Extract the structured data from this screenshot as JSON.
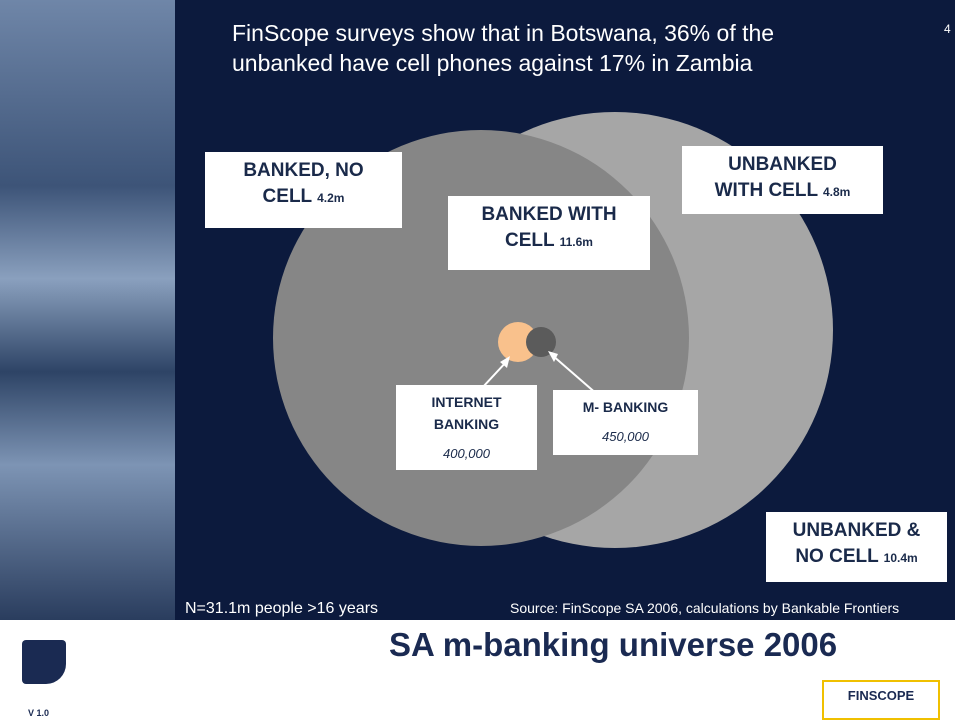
{
  "header": {
    "lines": [
      "FinScope surveys show that in Botswana, 36% of the",
      "unbanked have cell phones against 17% in Zambia"
    ],
    "page_number": "4"
  },
  "segments": [
    {
      "label_lines": [
        "BANKED, NO",
        "CELL"
      ],
      "value": "4.2m"
    },
    {
      "label_lines": [
        "BANKED WITH",
        "CELL"
      ],
      "value": "11.6m"
    },
    {
      "label_lines": [
        "UNBANKED",
        "WITH CELL"
      ],
      "value": "4.8m"
    },
    {
      "label_lines": [
        "INTERNET",
        "BANKING"
      ],
      "value": "400,000"
    },
    {
      "label_lines": [
        "M- BANKING"
      ],
      "value": "450,000"
    },
    {
      "label_lines": [
        "UNBANKED &",
        "NO CELL"
      ],
      "value": "10.4m"
    }
  ],
  "footnote": "N=31.1m people >16 years",
  "source": "Source: FinScope SA 2006, calculations by Bankable Frontiers",
  "title": "SA m-banking universe 2006",
  "version": "V 1.0",
  "logo": "FINSCOPE"
}
